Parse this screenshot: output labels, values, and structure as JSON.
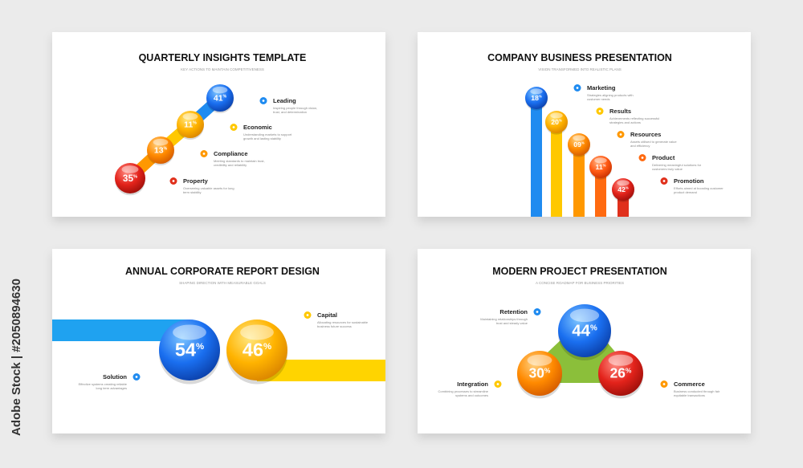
{
  "side_credit": "Adobe Stock | #2050894630",
  "slides": [
    {
      "title": "QUARTERLY INSIGHTS TEMPLATE",
      "subtitle": "KEY ACTIONS TO MAINTAIN COMPETITIVENESS",
      "items": [
        {
          "label": "Leading",
          "description": [
            "Inspiring people through vision,",
            "trust, and determination"
          ],
          "percent": {
            "value": "41",
            "unit": "%"
          }
        },
        {
          "label": "Economic",
          "description": [
            "Understanding markets to support",
            "growth and lasting stability"
          ],
          "percent": {
            "value": "11",
            "unit": "%"
          }
        },
        {
          "label": "Compliance",
          "description": [
            "Meeting standards to maintain trust,",
            "credibility and reliability"
          ],
          "percent": {
            "value": "13",
            "unit": "%"
          }
        },
        {
          "label": "Property",
          "description": [
            "Overseeing valuable assets for long",
            "term stability"
          ],
          "percent": {
            "value": "35",
            "unit": "%"
          }
        }
      ]
    },
    {
      "title": "COMPANY BUSINESS PRESENTATION",
      "subtitle": "VISION TRANSFORMED INTO REALISTIC PLANS",
      "items": [
        {
          "label": "Marketing",
          "description": [
            "Strategies aligning products with",
            "customer needs"
          ],
          "percent": {
            "value": "18",
            "unit": "%"
          }
        },
        {
          "label": "Results",
          "description": [
            "Achievements reflecting successful",
            "strategies and actions"
          ],
          "percent": {
            "value": "20",
            "unit": "%"
          }
        },
        {
          "label": "Resources",
          "description": [
            "Assets utilised to generate value",
            "and efficiency"
          ],
          "percent": {
            "value": "09",
            "unit": "%"
          }
        },
        {
          "label": "Product",
          "description": [
            "Delivering meaningful solutions for",
            "customers truly value"
          ],
          "percent": {
            "value": "11",
            "unit": "%"
          }
        },
        {
          "label": "Promotion",
          "description": [
            "Efforts aimed at boosting customer",
            "product demand"
          ],
          "percent": {
            "value": "42",
            "unit": "%"
          }
        }
      ]
    },
    {
      "title": "ANNUAL CORPORATE REPORT DESIGN",
      "subtitle": "SHAPING DIRECTION WITH MEASURABLE GOALS",
      "items": [
        {
          "label": "Capital",
          "description": [
            "Allocating resources for sustainable",
            "business future success"
          ],
          "percent": {
            "value": "46",
            "unit": "%"
          }
        },
        {
          "label": "Solution",
          "description": [
            "Effective systems creating reliable",
            "long term advantages"
          ],
          "percent": {
            "value": "54",
            "unit": "%"
          }
        }
      ]
    },
    {
      "title": "MODERN PROJECT PRESENTATION",
      "subtitle": "A CONCISE ROADMAP FOR BUSINESS PRIORITIES",
      "items": [
        {
          "label": "Retention",
          "description": [
            "Maintaining relationships through",
            "trust and steady value"
          ],
          "percent": {
            "value": "44",
            "unit": "%"
          }
        },
        {
          "label": "Integration",
          "description": [
            "Combining processes to streamline",
            "systems and outcomes"
          ],
          "percent": {
            "value": "30",
            "unit": "%"
          }
        },
        {
          "label": "Commerce",
          "description": [
            "Business conducted through fair",
            "equitable transactions"
          ],
          "percent": {
            "value": "26",
            "unit": "%"
          }
        }
      ]
    }
  ]
}
